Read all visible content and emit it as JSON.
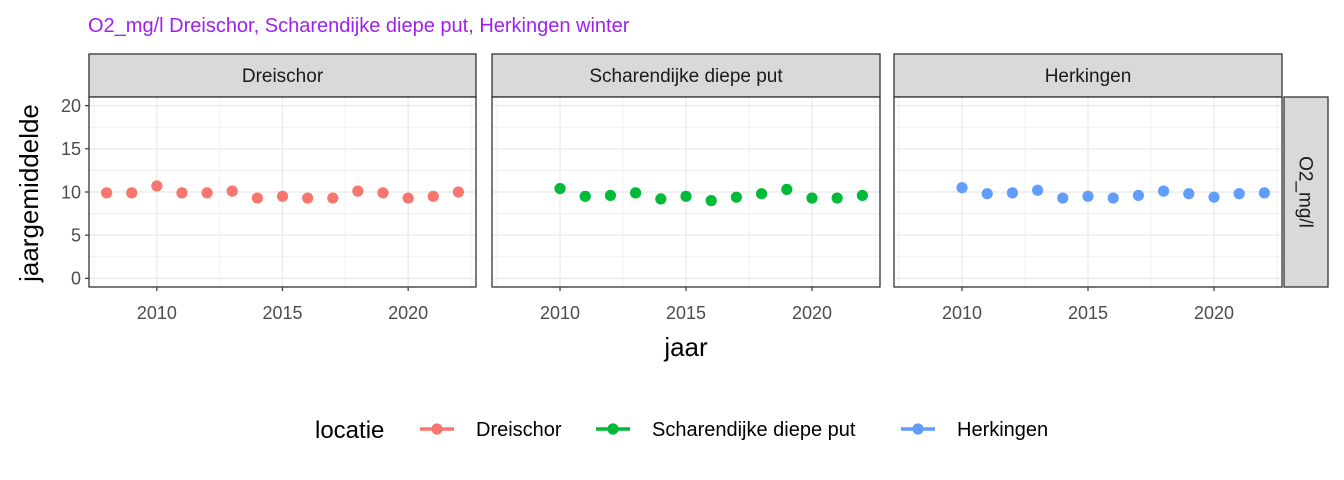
{
  "chart_data": {
    "type": "scatter",
    "title": "O2_mg/l Dreischor, Scharendijke diepe put, Herkingen winter",
    "title_color": "#a020f0",
    "xlabel": "jaar",
    "ylabel": "jaargemiddelde",
    "row_strip": "O2_mg/l",
    "xlim": [
      2007.3,
      2022.7
    ],
    "ylim": [
      -1,
      21
    ],
    "x_ticks": [
      2010,
      2015,
      2020
    ],
    "y_ticks": [
      0,
      5,
      10,
      15,
      20
    ],
    "grid": true,
    "legend": {
      "title": "locatie",
      "position": "bottom",
      "entries": [
        "Dreischor",
        "Scharendijke diepe put",
        "Herkingen"
      ]
    },
    "series": [
      {
        "name": "Dreischor",
        "color": "#f8766d",
        "x": [
          2008,
          2009,
          2010,
          2011,
          2012,
          2013,
          2014,
          2015,
          2016,
          2017,
          2018,
          2019,
          2020,
          2021,
          2022
        ],
        "values": [
          9.9,
          9.9,
          10.7,
          9.9,
          9.9,
          10.1,
          9.3,
          9.5,
          9.3,
          9.3,
          10.1,
          9.9,
          9.3,
          9.5,
          10.0
        ]
      },
      {
        "name": "Scharendijke diepe put",
        "color": "#00ba38",
        "x": [
          2010,
          2011,
          2012,
          2013,
          2014,
          2015,
          2016,
          2017,
          2018,
          2019,
          2020,
          2021,
          2022
        ],
        "values": [
          10.4,
          9.5,
          9.6,
          9.9,
          9.2,
          9.5,
          9.0,
          9.4,
          9.8,
          10.3,
          9.3,
          9.3,
          9.6
        ]
      },
      {
        "name": "Herkingen",
        "color": "#619cff",
        "x": [
          2010,
          2011,
          2012,
          2013,
          2014,
          2015,
          2016,
          2017,
          2018,
          2019,
          2020,
          2021,
          2022
        ],
        "values": [
          10.5,
          9.8,
          9.9,
          10.2,
          9.3,
          9.5,
          9.3,
          9.6,
          10.1,
          9.8,
          9.4,
          9.8,
          9.9
        ]
      }
    ]
  }
}
